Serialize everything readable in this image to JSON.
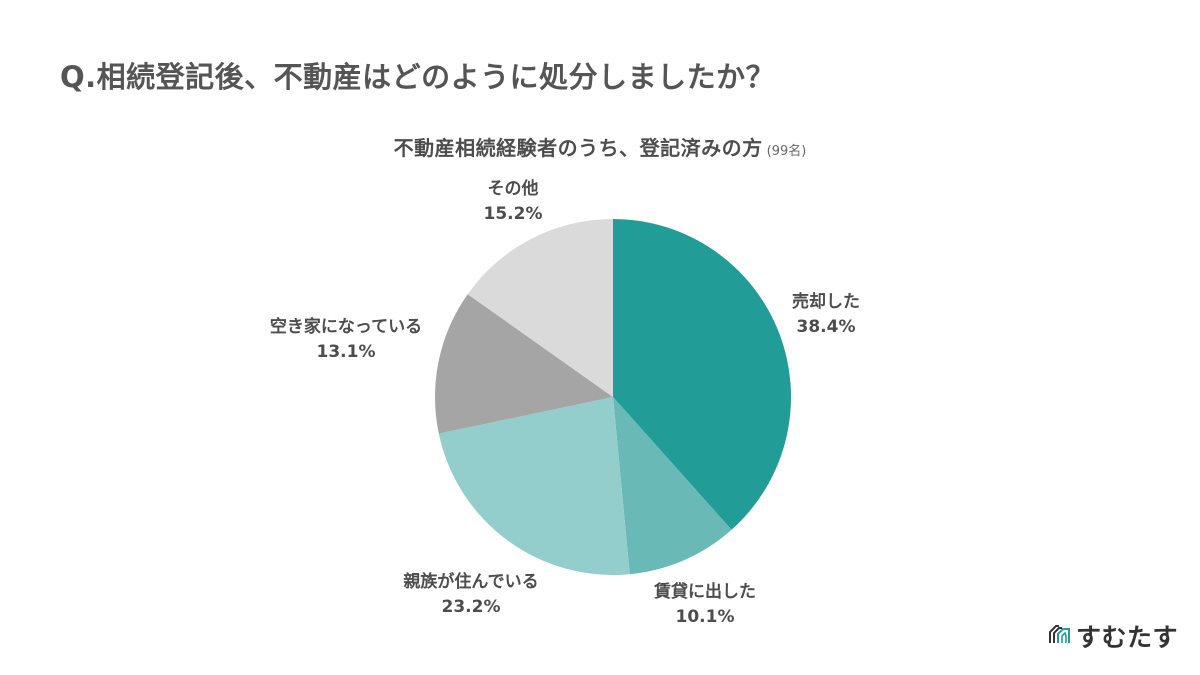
{
  "question": "Q.相続登記後、不動産はどのように処分しましたか？",
  "subtitle": {
    "main": "不動産相続経験者のうち、登記済みの方",
    "count": "(99名)"
  },
  "logo": {
    "text": "すむたす",
    "icon": "house-outline-logo-icon",
    "accent_color": "#229C96"
  },
  "chart_data": {
    "type": "pie",
    "title": "Q.相続登記後、不動産はどのように処分しましたか？",
    "subtitle": "不動産相続経験者のうち、登記済みの方 (99名)",
    "categories": [
      "売却した",
      "賃貸に出した",
      "親族が住んでいる",
      "空き家になっている",
      "その他"
    ],
    "values": [
      38.4,
      10.1,
      23.2,
      13.1,
      15.2
    ],
    "unit": "%",
    "colors": [
      "#229C96",
      "#69B9B7",
      "#93CDCC",
      "#A5A5A5",
      "#DADADA"
    ],
    "start_angle": "12 o'clock",
    "direction": "clockwise",
    "legend": "none (direct labels)",
    "n": 99
  },
  "labels": [
    {
      "name": "売却した",
      "pct": "38.4%"
    },
    {
      "name": "賃貸に出した",
      "pct": "10.1%"
    },
    {
      "name": "親族が住んでいる",
      "pct": "23.2%"
    },
    {
      "name": "空き家になっている",
      "pct": "13.1%"
    },
    {
      "name": "その他",
      "pct": "15.2%"
    }
  ]
}
